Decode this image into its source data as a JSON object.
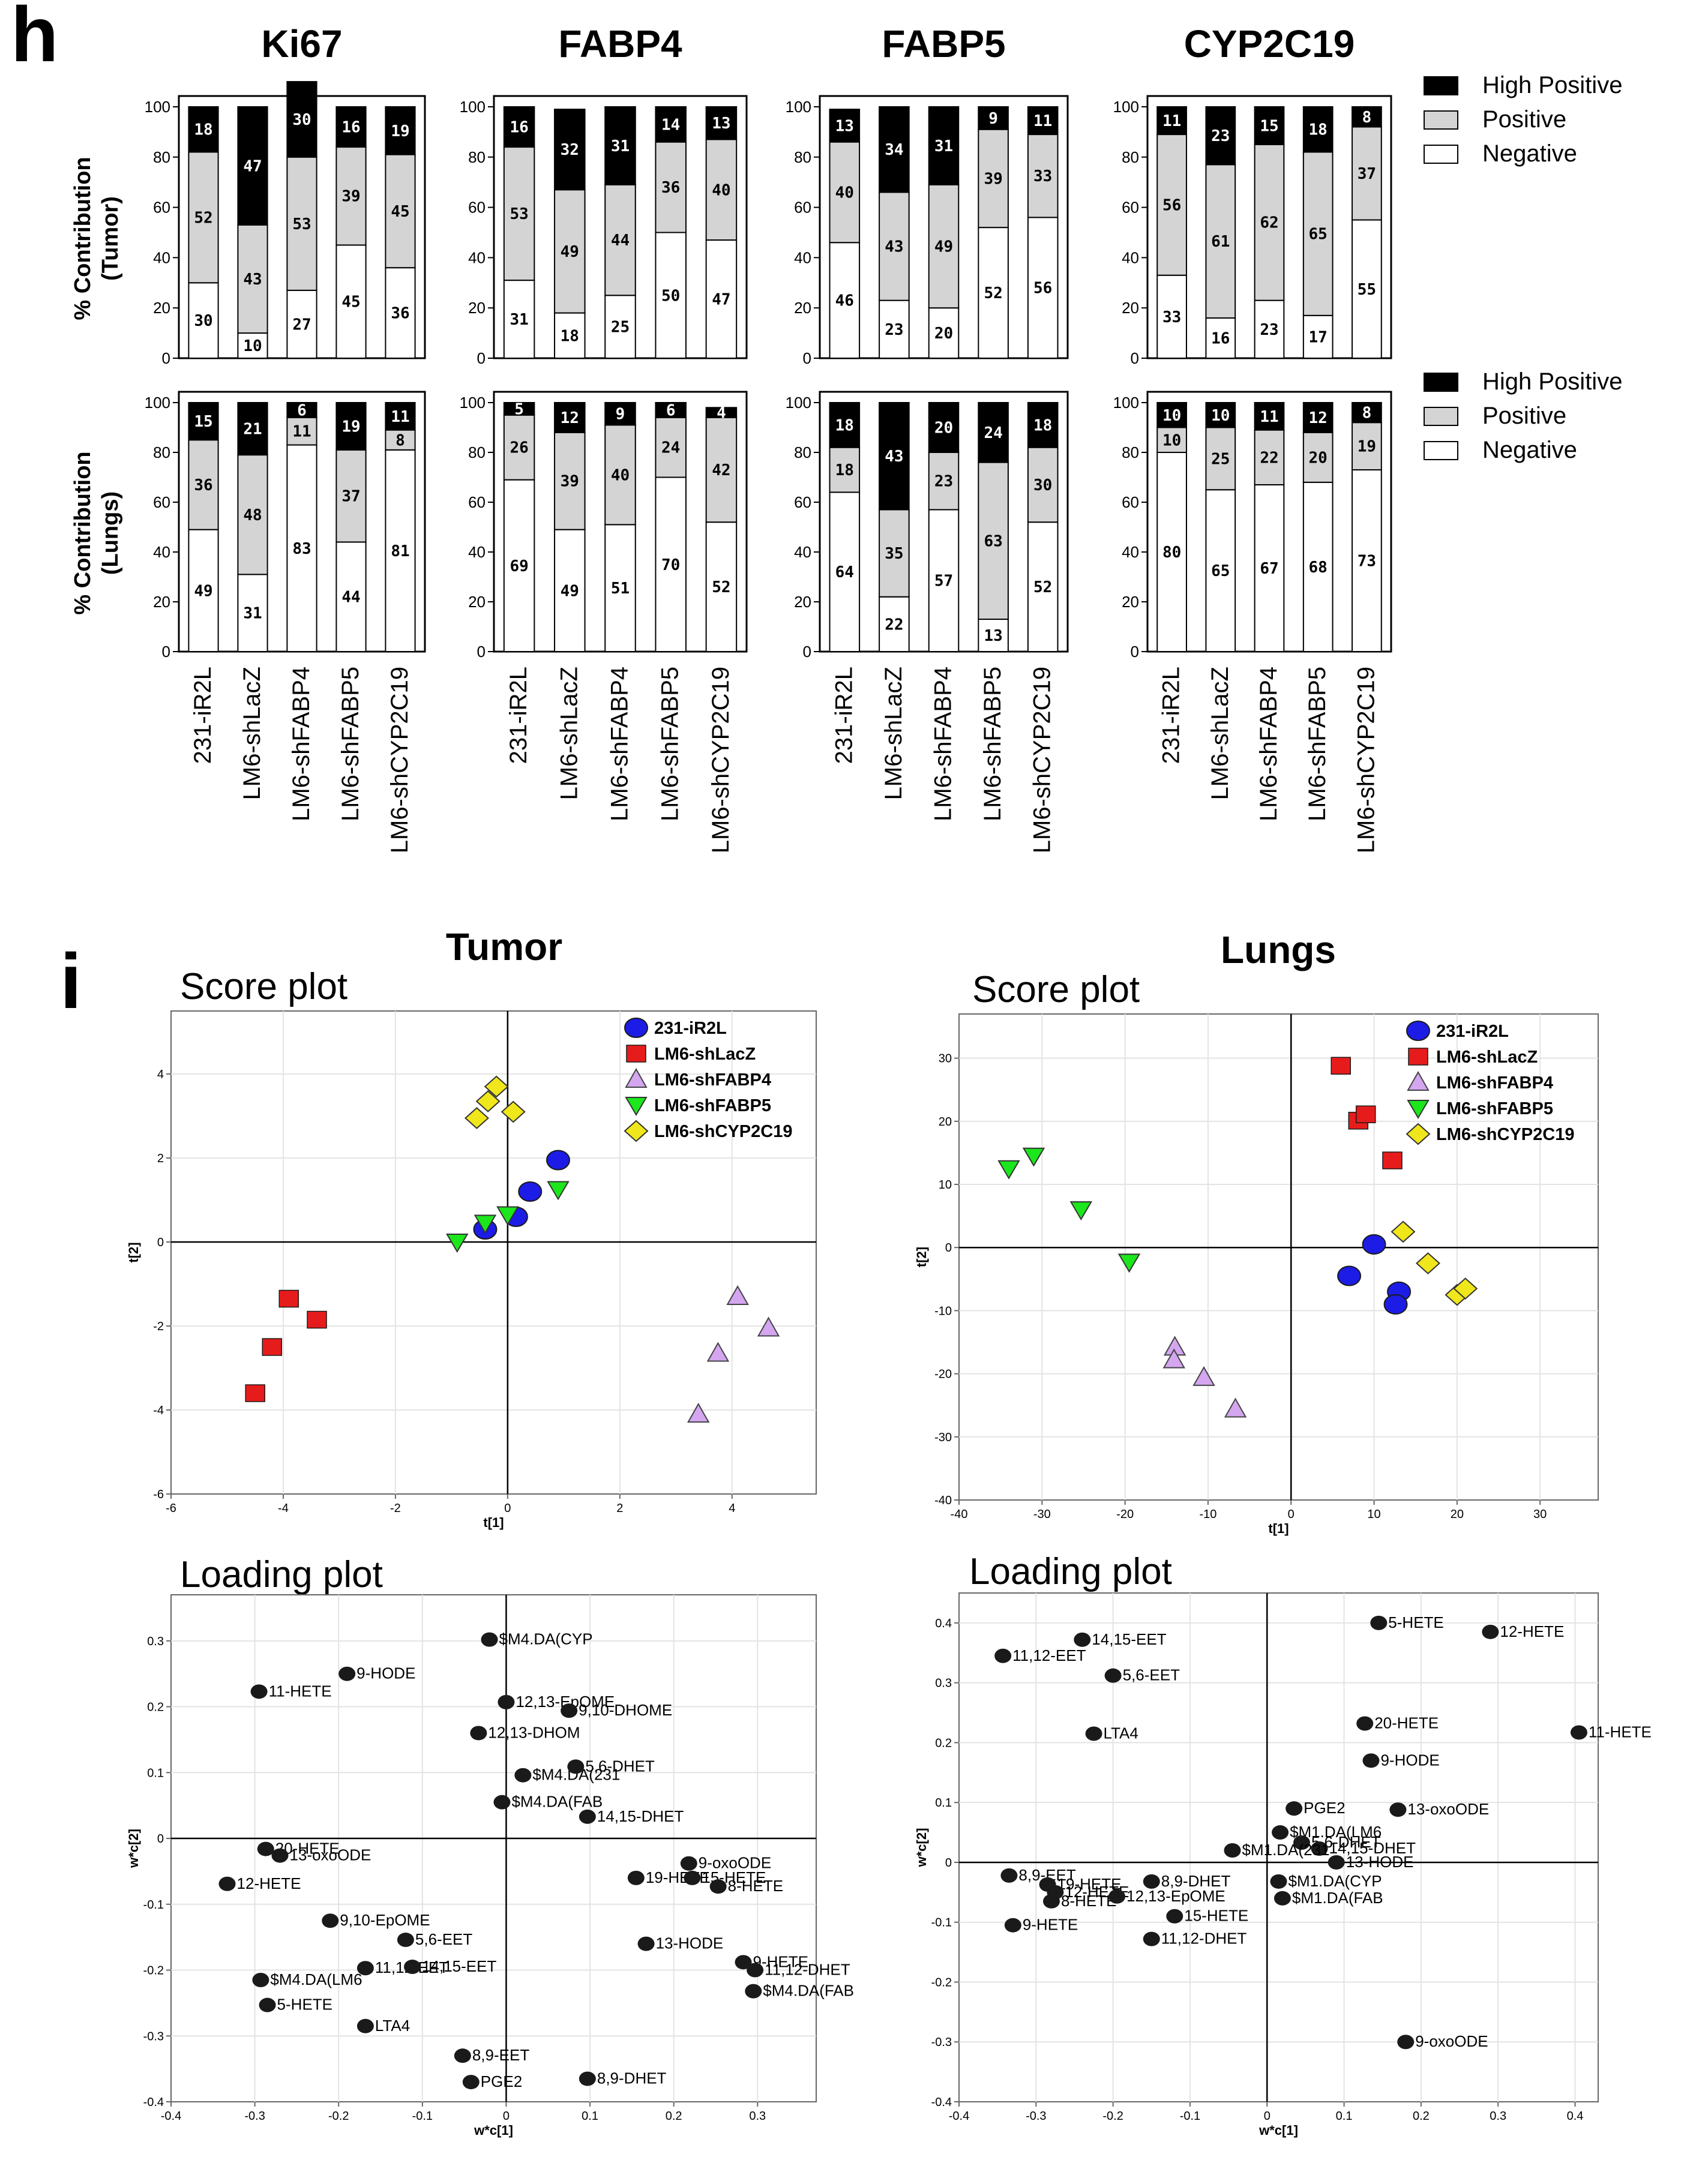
{
  "panel_h": {
    "letter": "h",
    "row_labels": [
      "% Contribution\n(Tumor)",
      "% Contribution\n(Lungs)"
    ],
    "legend": [
      "High Positive",
      "Positive",
      "Negative"
    ],
    "colors": {
      "high": "#000000",
      "positive": "#d4d4d4",
      "negative": "#ffffff"
    }
  },
  "panel_i": {
    "letter": "i",
    "titles": [
      "Tumor",
      "Lungs"
    ],
    "score_label": "Score plot",
    "loading_label": "Loading plot"
  },
  "chart_data": [
    {
      "type": "bar",
      "stacked": true,
      "title": "Ki67",
      "panel": "h",
      "row": "Tumor",
      "categories": [
        "231-iR2L",
        "LM6-shLacZ",
        "LM6-shFABP4",
        "LM6-shFABP5",
        "LM6-shCYP2C19"
      ],
      "series": [
        {
          "name": "Negative",
          "values": [
            30,
            10,
            27,
            45,
            36
          ]
        },
        {
          "name": "Positive",
          "values": [
            52,
            43,
            53,
            39,
            45
          ]
        },
        {
          "name": "High Positive",
          "values": [
            18,
            47,
            30,
            16,
            19
          ]
        }
      ],
      "ylabel": "% Contribution\n(Tumor)",
      "ylim": [
        0,
        100
      ],
      "yticks": [
        0,
        20,
        40,
        60,
        80,
        100
      ]
    },
    {
      "type": "bar",
      "stacked": true,
      "title": "FABP4",
      "panel": "h",
      "row": "Tumor",
      "categories": [
        "231-iR2L",
        "LM6-shLacZ",
        "LM6-shFABP4",
        "LM6-shFABP5",
        "LM6-shCYP2C19"
      ],
      "series": [
        {
          "name": "Negative",
          "values": [
            31,
            18,
            25,
            50,
            47
          ]
        },
        {
          "name": "Positive",
          "values": [
            53,
            49,
            44,
            36,
            40
          ]
        },
        {
          "name": "High Positive",
          "values": [
            16,
            32,
            31,
            14,
            13
          ]
        }
      ],
      "ylim": [
        0,
        100
      ],
      "yticks": [
        0,
        20,
        40,
        60,
        80,
        100
      ]
    },
    {
      "type": "bar",
      "stacked": true,
      "title": "FABP5",
      "panel": "h",
      "row": "Tumor",
      "categories": [
        "231-iR2L",
        "LM6-shLacZ",
        "LM6-shFABP4",
        "LM6-shFABP5",
        "LM6-shCYP2C19"
      ],
      "series": [
        {
          "name": "Negative",
          "values": [
            46,
            23,
            20,
            52,
            56
          ]
        },
        {
          "name": "Positive",
          "values": [
            40,
            43,
            49,
            39,
            33
          ]
        },
        {
          "name": "High Positive",
          "values": [
            13,
            34,
            31,
            9,
            11
          ]
        }
      ],
      "ylim": [
        0,
        100
      ],
      "yticks": [
        0,
        20,
        40,
        60,
        80,
        100
      ]
    },
    {
      "type": "bar",
      "stacked": true,
      "title": "CYP2C19",
      "panel": "h",
      "row": "Tumor",
      "categories": [
        "231-iR2L",
        "LM6-shLacZ",
        "LM6-shFABP4",
        "LM6-shFABP5",
        "LM6-shCYP2C19"
      ],
      "series": [
        {
          "name": "Negative",
          "values": [
            33,
            16,
            23,
            17,
            55
          ]
        },
        {
          "name": "Positive",
          "values": [
            56,
            61,
            62,
            65,
            37
          ]
        },
        {
          "name": "High Positive",
          "values": [
            11,
            23,
            15,
            18,
            8
          ]
        }
      ],
      "ylim": [
        0,
        100
      ],
      "yticks": [
        0,
        20,
        40,
        60,
        80,
        100
      ],
      "legend": "right"
    },
    {
      "type": "bar",
      "stacked": true,
      "title": "",
      "panel": "h",
      "row": "Lungs",
      "categories": [
        "231-iR2L",
        "LM6-shLacZ",
        "LM6-shFABP4",
        "LM6-shFABP5",
        "LM6-shCYP2C19"
      ],
      "series": [
        {
          "name": "Negative",
          "values": [
            49,
            31,
            83,
            44,
            81
          ]
        },
        {
          "name": "Positive",
          "values": [
            36,
            48,
            11,
            37,
            8
          ]
        },
        {
          "name": "High Positive",
          "values": [
            15,
            21,
            6,
            19,
            11
          ]
        }
      ],
      "ylabel": "% Contribution\n(Lungs)",
      "ylim": [
        0,
        100
      ],
      "yticks": [
        0,
        20,
        40,
        60,
        80,
        100
      ]
    },
    {
      "type": "bar",
      "stacked": true,
      "title": "",
      "panel": "h",
      "row": "Lungs",
      "categories": [
        "231-iR2L",
        "LM6-shLacZ",
        "LM6-shFABP4",
        "LM6-shFABP5",
        "LM6-shCYP2C19"
      ],
      "series": [
        {
          "name": "Negative",
          "values": [
            69,
            49,
            51,
            70,
            52
          ]
        },
        {
          "name": "Positive",
          "values": [
            26,
            39,
            40,
            24,
            42
          ]
        },
        {
          "name": "High Positive",
          "values": [
            5,
            12,
            9,
            6,
            4
          ]
        }
      ],
      "ylim": [
        0,
        100
      ],
      "yticks": [
        0,
        20,
        40,
        60,
        80,
        100
      ]
    },
    {
      "type": "bar",
      "stacked": true,
      "title": "",
      "panel": "h",
      "row": "Lungs",
      "categories": [
        "231-iR2L",
        "LM6-shLacZ",
        "LM6-shFABP4",
        "LM6-shFABP5",
        "LM6-shCYP2C19"
      ],
      "series": [
        {
          "name": "Negative",
          "values": [
            64,
            22,
            57,
            13,
            52
          ]
        },
        {
          "name": "Positive",
          "values": [
            18,
            35,
            23,
            63,
            30
          ]
        },
        {
          "name": "High Positive",
          "values": [
            18,
            43,
            20,
            24,
            18
          ]
        }
      ],
      "ylim": [
        0,
        100
      ],
      "yticks": [
        0,
        20,
        40,
        60,
        80,
        100
      ]
    },
    {
      "type": "bar",
      "stacked": true,
      "title": "",
      "panel": "h",
      "row": "Lungs",
      "categories": [
        "231-iR2L",
        "LM6-shLacZ",
        "LM6-shFABP4",
        "LM6-shFABP5",
        "LM6-shCYP2C19"
      ],
      "series": [
        {
          "name": "Negative",
          "values": [
            80,
            65,
            67,
            68,
            73
          ]
        },
        {
          "name": "Positive",
          "values": [
            10,
            25,
            22,
            20,
            19
          ]
        },
        {
          "name": "High Positive",
          "values": [
            10,
            10,
            11,
            12,
            8
          ]
        }
      ],
      "ylim": [
        0,
        100
      ],
      "yticks": [
        0,
        20,
        40,
        60,
        80,
        100
      ],
      "legend": "right"
    },
    {
      "type": "scatter",
      "panel": "i",
      "title": "Score plot",
      "xlabel": "t[1]",
      "ylabel": "t[2]",
      "xlim": [
        -6,
        5.5
      ],
      "ylim": [
        -6,
        5.5
      ],
      "xticks": [
        -6,
        -4,
        -2,
        0,
        2,
        4
      ],
      "yticks": [
        -6,
        -4,
        -2,
        0,
        2,
        4
      ],
      "legend": "top-right",
      "series": [
        {
          "name": "231-iR2L",
          "marker": "circle",
          "color": "#1c1ce6",
          "x": [
            -0.4,
            0.15,
            0.4,
            0.9
          ],
          "y": [
            0.3,
            0.6,
            1.2,
            1.95
          ]
        },
        {
          "name": "LM6-shLacZ",
          "marker": "square",
          "color": "#e61c1c",
          "x": [
            -4.5,
            -4.2,
            -3.9,
            -3.4
          ],
          "y": [
            -3.6,
            -2.5,
            -1.35,
            -1.85
          ]
        },
        {
          "name": "LM6-shFABP4",
          "marker": "triangle-up",
          "color": "#d4a6f0",
          "x": [
            3.4,
            3.75,
            4.1,
            4.65
          ],
          "y": [
            -4.1,
            -2.65,
            -1.3,
            -2.05
          ]
        },
        {
          "name": "LM6-shFABP5",
          "marker": "triangle-down",
          "color": "#1ce61c",
          "x": [
            -0.9,
            -0.4,
            0.0,
            0.9
          ],
          "y": [
            0.0,
            0.45,
            0.65,
            1.25
          ]
        },
        {
          "name": "LM6-shCYP2C19",
          "marker": "diamond",
          "color": "#f0e61c",
          "x": [
            -0.55,
            -0.35,
            -0.2,
            0.1
          ],
          "y": [
            2.95,
            3.35,
            3.7,
            3.1
          ]
        }
      ]
    },
    {
      "type": "scatter",
      "panel": "i",
      "title": "Score plot",
      "xlabel": "t[1]",
      "ylabel": "t[2]",
      "xlim": [
        -40,
        37
      ],
      "ylim": [
        -40,
        37
      ],
      "xticks": [
        -40,
        -30,
        -20,
        -10,
        0,
        10,
        20,
        30
      ],
      "yticks": [
        -40,
        -30,
        -20,
        -10,
        0,
        10,
        20,
        30
      ],
      "legend": "top-right",
      "series": [
        {
          "name": "231-iR2L",
          "marker": "circle",
          "color": "#1c1ce6",
          "x": [
            10,
            7,
            13,
            12.6
          ],
          "y": [
            0.5,
            -4.5,
            -7,
            -9
          ]
        },
        {
          "name": "LM6-shLacZ",
          "marker": "square",
          "color": "#e61c1c",
          "x": [
            6,
            8.1,
            9,
            12.2
          ],
          "y": [
            28.8,
            20.1,
            21.1,
            13.8
          ]
        },
        {
          "name": "LM6-shFABP4",
          "marker": "triangle-up",
          "color": "#d4a6f0",
          "x": [
            -14,
            -14.1,
            -10.5,
            -6.7
          ],
          "y": [
            -15.8,
            -17.8,
            -20.6,
            -25.6
          ]
        },
        {
          "name": "LM6-shFABP5",
          "marker": "triangle-down",
          "color": "#1ce61c",
          "x": [
            -34,
            -31,
            -25.3,
            -19.5
          ],
          "y": [
            12.5,
            14.5,
            6,
            -2.3
          ]
        },
        {
          "name": "LM6-shCYP2C19",
          "marker": "diamond",
          "color": "#f0e61c",
          "x": [
            13.5,
            16.5,
            20,
            21
          ],
          "y": [
            2.5,
            -2.5,
            -7.5,
            -6.5
          ]
        }
      ]
    },
    {
      "type": "scatter",
      "panel": "i",
      "title": "Loading plot",
      "xlabel": "w*c[1]",
      "ylabel": "w*c[2]",
      "xlim": [
        -0.4,
        0.37
      ],
      "ylim": [
        -0.4,
        0.37
      ],
      "xticks": [
        -0.4,
        -0.3,
        -0.2,
        -0.1,
        0,
        0.1,
        0.2,
        0.3
      ],
      "yticks": [
        -0.4,
        -0.3,
        -0.2,
        -0.1,
        0,
        0.1,
        0.2,
        0.3
      ],
      "points": [
        {
          "label": "$M4.DA(CYP",
          "x": -0.02,
          "y": 0.302
        },
        {
          "label": "9-HODE",
          "x": -0.19,
          "y": 0.25
        },
        {
          "label": "11-HETE",
          "x": -0.295,
          "y": 0.223
        },
        {
          "label": "12,13-EpOME",
          "x": 0.0,
          "y": 0.207
        },
        {
          "label": "9,10-DHOME",
          "x": 0.075,
          "y": 0.194
        },
        {
          "label": "12,13-DHOM",
          "x": -0.033,
          "y": 0.16
        },
        {
          "label": "$M4.DA(231",
          "x": 0.02,
          "y": 0.096
        },
        {
          "label": "5,6-DHET",
          "x": 0.083,
          "y": 0.109
        },
        {
          "label": "$M4.DA(FAB",
          "x": -0.005,
          "y": 0.055
        },
        {
          "label": "14,15-DHET",
          "x": 0.097,
          "y": 0.033
        },
        {
          "label": "20-HETE",
          "x": -0.287,
          "y": -0.016
        },
        {
          "label": "13-oxoODE",
          "x": -0.27,
          "y": -0.026
        },
        {
          "label": "9-oxoODE",
          "x": 0.218,
          "y": -0.038
        },
        {
          "label": "12-HETE",
          "x": -0.333,
          "y": -0.069
        },
        {
          "label": "19-HETE",
          "x": 0.155,
          "y": -0.06
        },
        {
          "label": "15-HETE",
          "x": 0.222,
          "y": -0.06
        },
        {
          "label": "8-HETE",
          "x": 0.253,
          "y": -0.073
        },
        {
          "label": "9,10-EpOME",
          "x": -0.21,
          "y": -0.125
        },
        {
          "label": "5,6-EET",
          "x": -0.12,
          "y": -0.154
        },
        {
          "label": "13-HODE",
          "x": 0.167,
          "y": -0.16
        },
        {
          "label": "9-HETE",
          "x": 0.283,
          "y": -0.188
        },
        {
          "label": "$M4.DA(LM6",
          "x": -0.293,
          "y": -0.215
        },
        {
          "label": "11,12-EET",
          "x": -0.168,
          "y": -0.197
        },
        {
          "label": "14,15-EET",
          "x": -0.112,
          "y": -0.195
        },
        {
          "label": "11,12-DHET",
          "x": 0.297,
          "y": -0.2
        },
        {
          "label": "5-HETE",
          "x": -0.285,
          "y": -0.253
        },
        {
          "label": "$M4.DA(FAB",
          "x": 0.295,
          "y": -0.232
        },
        {
          "label": "LTA4",
          "x": -0.168,
          "y": -0.285
        },
        {
          "label": "8,9-EET",
          "x": -0.052,
          "y": -0.33
        },
        {
          "label": "PGE2",
          "x": -0.042,
          "y": -0.37
        },
        {
          "label": "8,9-DHET",
          "x": 0.097,
          "y": -0.365
        }
      ]
    },
    {
      "type": "scatter",
      "panel": "i",
      "title": "Loading plot",
      "xlabel": "w*c[1]",
      "ylabel": "w*c[2]",
      "xlim": [
        -0.4,
        0.43
      ],
      "ylim": [
        -0.4,
        0.45
      ],
      "xticks": [
        -0.4,
        -0.3,
        -0.2,
        -0.1,
        0,
        0.1,
        0.2,
        0.3,
        0.4
      ],
      "yticks": [
        -0.4,
        -0.3,
        -0.2,
        -0.1,
        0,
        0.1,
        0.2,
        0.3,
        0.4
      ],
      "points": [
        {
          "label": "14,15-EET",
          "x": -0.24,
          "y": 0.372
        },
        {
          "label": "11,12-EET",
          "x": -0.343,
          "y": 0.345
        },
        {
          "label": "5,6-EET",
          "x": -0.2,
          "y": 0.312
        },
        {
          "label": "LTA4",
          "x": -0.225,
          "y": 0.215
        },
        {
          "label": "5-HETE",
          "x": 0.145,
          "y": 0.4
        },
        {
          "label": "12-HETE",
          "x": 0.29,
          "y": 0.385
        },
        {
          "label": "20-HETE",
          "x": 0.127,
          "y": 0.232
        },
        {
          "label": "11-HETE",
          "x": 0.405,
          "y": 0.217
        },
        {
          "label": "9-HODE",
          "x": 0.135,
          "y": 0.17
        },
        {
          "label": "PGE2",
          "x": 0.035,
          "y": 0.09
        },
        {
          "label": "13-oxoODE",
          "x": 0.17,
          "y": 0.088
        },
        {
          "label": "$M1.DA(LM6",
          "x": 0.017,
          "y": 0.05
        },
        {
          "label": "5,6-DHET",
          "x": 0.045,
          "y": 0.033
        },
        {
          "label": "14,15-DHET",
          "x": 0.068,
          "y": 0.023
        },
        {
          "label": "$M1.DA(231",
          "x": -0.045,
          "y": 0.02
        },
        {
          "label": "13-HODE",
          "x": 0.09,
          "y": 0.0
        },
        {
          "label": "8,9-EET",
          "x": -0.335,
          "y": -0.022
        },
        {
          "label": "19-HETE",
          "x": -0.285,
          "y": -0.037
        },
        {
          "label": "12-HETE",
          "x": -0.275,
          "y": -0.05
        },
        {
          "label": "8-HETE",
          "x": -0.28,
          "y": -0.065
        },
        {
          "label": "8,9-DHET",
          "x": -0.15,
          "y": -0.032
        },
        {
          "label": "12,13-EpOME",
          "x": -0.195,
          "y": -0.057
        },
        {
          "label": "$M1.DA(CYP",
          "x": 0.015,
          "y": -0.032
        },
        {
          "label": "$M1.DA(FAB",
          "x": 0.02,
          "y": -0.06
        },
        {
          "label": "15-HETE",
          "x": -0.12,
          "y": -0.09
        },
        {
          "label": "9-HETE",
          "x": -0.33,
          "y": -0.105
        },
        {
          "label": "11,12-DHET",
          "x": -0.15,
          "y": -0.128
        },
        {
          "label": "9-oxoODE",
          "x": 0.18,
          "y": -0.3
        }
      ]
    }
  ]
}
